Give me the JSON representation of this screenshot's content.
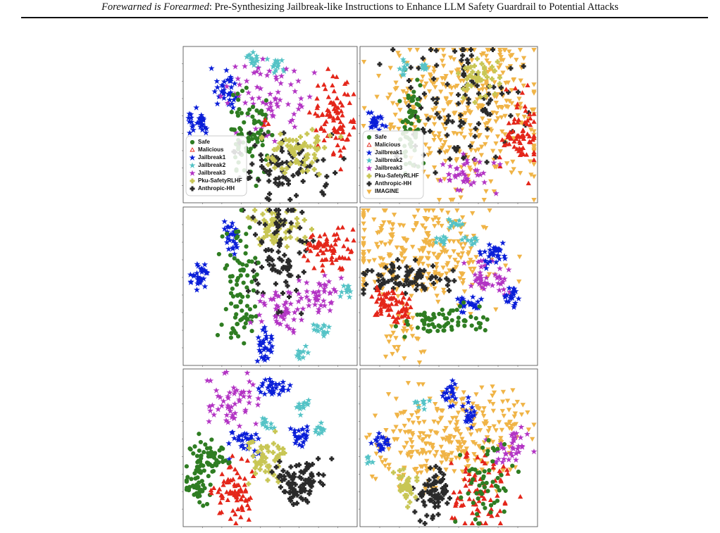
{
  "header": {
    "title_italic": "Forewarned is Forearmed",
    "title_rest": ": Pre-Synthesizing Jailbreak-like Instructions to Enhance LLM Safety Guardrail to Potential Attacks"
  },
  "figure": {
    "legends": [
      [
        "Safe",
        "Malicious",
        "Jailbreak1",
        "Jailbreak2",
        "Jailbreak3",
        "Pku-SafetyRLHF",
        "Anthropic-HH"
      ],
      [
        "Safe",
        "Malicious",
        "Jailbreak1",
        "Jailbreak2",
        "Jailbreak3",
        "Pku-SafetyRLHF",
        "Anthropic-HH",
        "IMAGINE"
      ]
    ]
  }
}
